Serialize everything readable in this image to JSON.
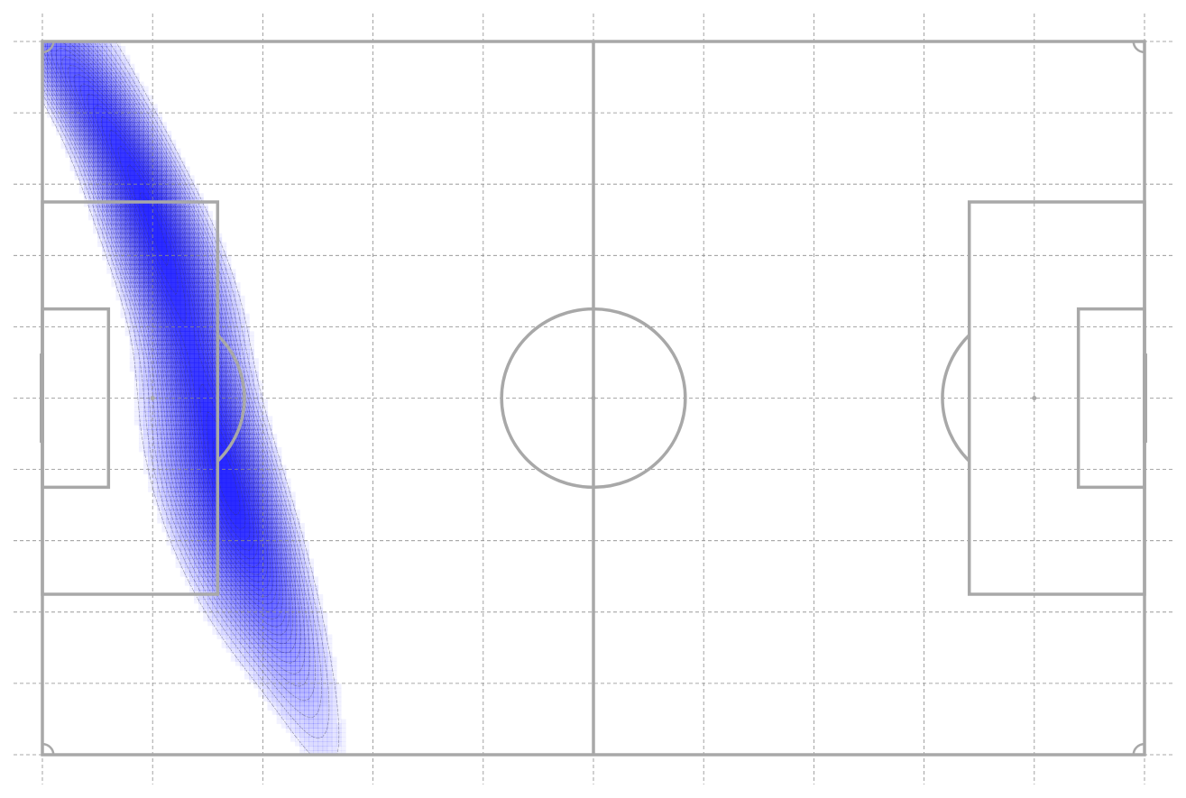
{
  "chart_data": {
    "type": "heatmap",
    "subtype": "kde-contour-on-football-pitch",
    "pitch": {
      "length": 120,
      "width": 80,
      "x_range": [
        0,
        120
      ],
      "y_range": [
        0,
        80
      ],
      "line_color": "#a8a8a8",
      "background": "#ffffff"
    },
    "grid": {
      "on": true,
      "style": "dashed",
      "color": "#8c8c8c",
      "x_lines": [
        0,
        12,
        24,
        36,
        48,
        60,
        72,
        84,
        96,
        108,
        120
      ],
      "y_lines": [
        0,
        8,
        16,
        24,
        32,
        40,
        48,
        56,
        64,
        72,
        80
      ]
    },
    "density": {
      "color": "#1f1fff",
      "contour_color": "#3a3a5a",
      "levels": 48,
      "components": [
        {
          "mean_x": 17.5,
          "mean_y": 38.5,
          "sd_major": 22.0,
          "sd_minor": 2.6,
          "angle_deg": 72,
          "weight": 1.0
        },
        {
          "mean_x": 19.0,
          "mean_y": 53.0,
          "sd_major": 10.0,
          "sd_minor": 3.2,
          "angle_deg": 70,
          "weight": 0.65
        },
        {
          "mean_x": 4.0,
          "mean_y": 5.0,
          "sd_major": 11.0,
          "sd_minor": 2.2,
          "angle_deg": 58,
          "weight": 0.7
        },
        {
          "mean_x": 13.0,
          "mean_y": 22.0,
          "sd_major": 9.0,
          "sd_minor": 3.0,
          "angle_deg": 62,
          "weight": 0.45
        }
      ]
    },
    "title": "",
    "xlabel": "",
    "ylabel": ""
  }
}
